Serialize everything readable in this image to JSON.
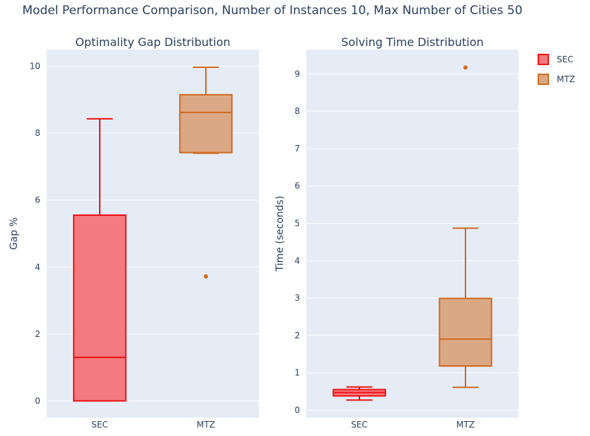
{
  "title": "Model Performance Comparison, Number of Instances 10, Max Number of Cities 50",
  "legend": {
    "items": [
      {
        "label": "SEC",
        "fill": "#f37a80",
        "stroke": "#ee1111"
      },
      {
        "label": "MTZ",
        "fill": "#dba886",
        "stroke": "#d2691e"
      }
    ]
  },
  "colors": {
    "plot_bg": "#e5ecf6",
    "grid": "#ffffff",
    "text": "#2a3f5f"
  },
  "chart_data": [
    {
      "type": "box",
      "title": "Optimality Gap Distribution",
      "xlabel": "",
      "ylabel": "Gap %",
      "categories": [
        "SEC",
        "MTZ"
      ],
      "ylim": [
        -0.5,
        10.5
      ],
      "yticks": [
        0,
        2,
        4,
        6,
        8,
        10
      ],
      "grid": true,
      "series": [
        {
          "name": "SEC",
          "color_key": "SEC",
          "min": 0,
          "q1": 0,
          "median": 1.3,
          "q3": 5.55,
          "max": 8.43,
          "outliers": []
        },
        {
          "name": "MTZ",
          "color_key": "MTZ",
          "min": 7.4,
          "q1": 7.42,
          "median": 8.62,
          "q3": 9.15,
          "max": 9.97,
          "outliers": [
            3.72
          ]
        }
      ]
    },
    {
      "type": "box",
      "title": "Solving Time Distribution",
      "xlabel": "",
      "ylabel": "Time (seconds)",
      "categories": [
        "SEC",
        "MTZ"
      ],
      "ylim": [
        -0.2,
        9.65
      ],
      "yticks": [
        0,
        1,
        2,
        3,
        4,
        5,
        6,
        7,
        8,
        9
      ],
      "grid": true,
      "series": [
        {
          "name": "SEC",
          "color_key": "SEC",
          "min": 0.27,
          "q1": 0.38,
          "median": 0.47,
          "q3": 0.55,
          "max": 0.62,
          "outliers": []
        },
        {
          "name": "MTZ",
          "color_key": "MTZ",
          "min": 0.61,
          "q1": 1.18,
          "median": 1.9,
          "q3": 2.99,
          "max": 4.87,
          "outliers": [
            9.17
          ]
        }
      ]
    }
  ]
}
